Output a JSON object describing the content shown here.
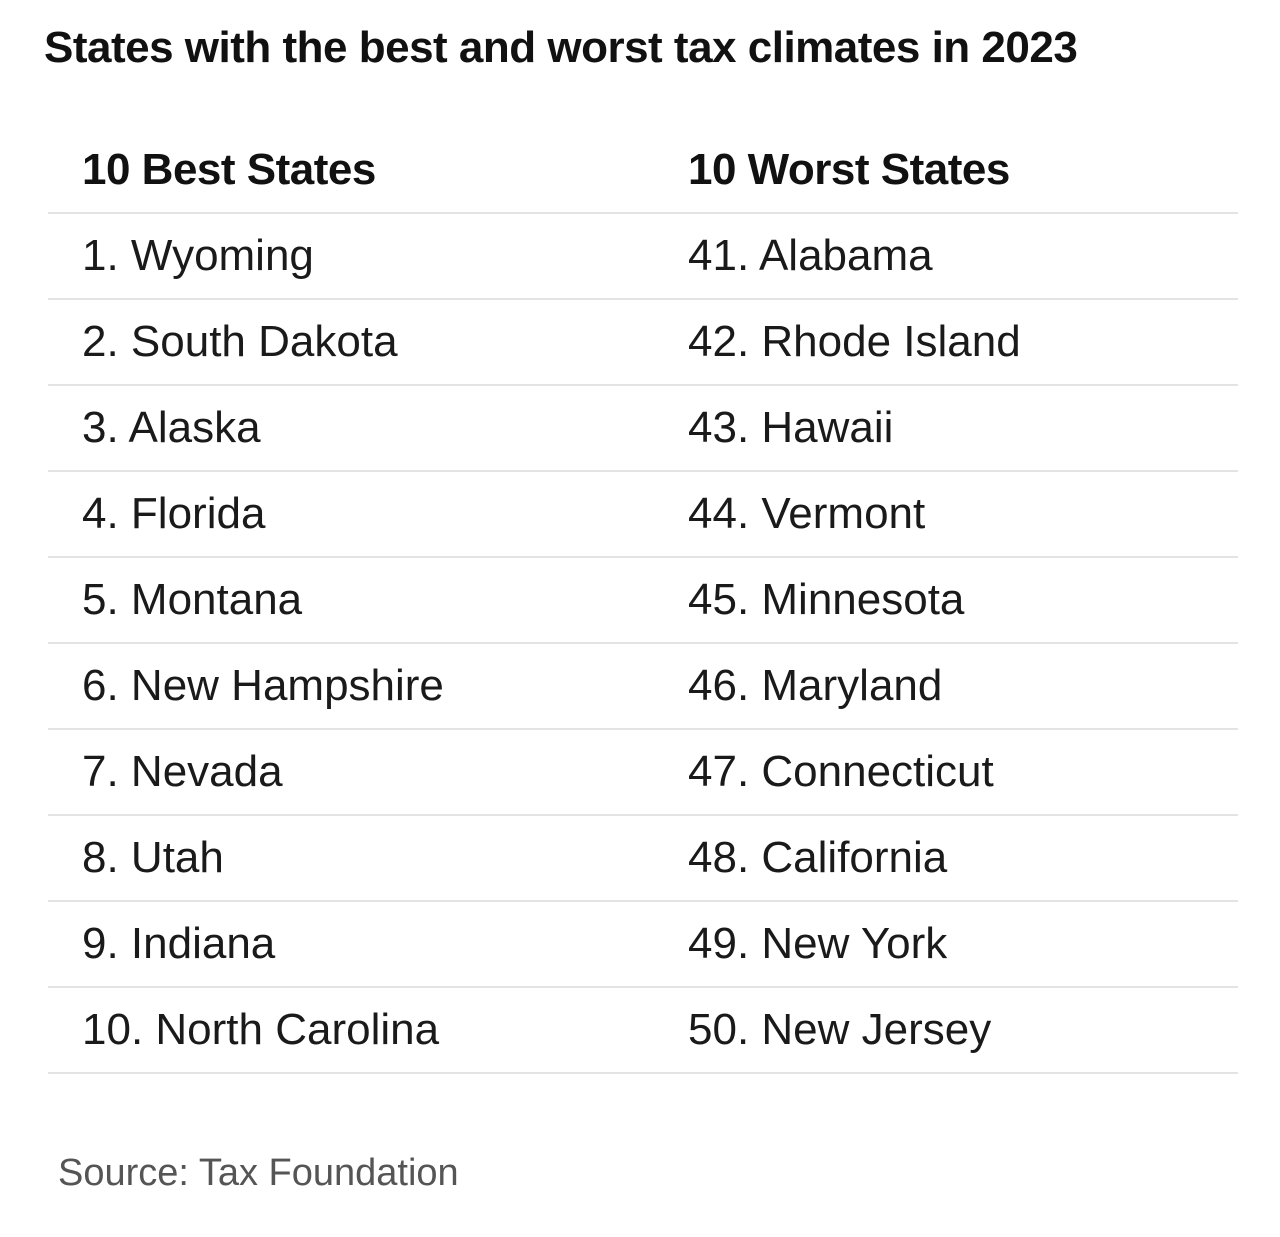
{
  "title": "States with the best and worst tax climates in 2023",
  "source": "Source: Tax Foundation",
  "chart_data": {
    "type": "table",
    "title": "States with the best and worst tax climates in 2023",
    "columns": [
      "10 Best States",
      "10 Worst States"
    ],
    "rows": [
      [
        "1. Wyoming",
        "41. Alabama"
      ],
      [
        "2. South Dakota",
        "42. Rhode Island"
      ],
      [
        "3. Alaska",
        "43. Hawaii"
      ],
      [
        "4. Florida",
        "44. Vermont"
      ],
      [
        "5. Montana",
        "45. Minnesota"
      ],
      [
        "6. New Hampshire",
        "46. Maryland"
      ],
      [
        "7. Nevada",
        "47. Connecticut"
      ],
      [
        "8. Utah",
        "48. California"
      ],
      [
        "9. Indiana",
        "49. New York"
      ],
      [
        "10. North Carolina",
        "50. New Jersey"
      ]
    ],
    "source": "Source: Tax Foundation"
  }
}
